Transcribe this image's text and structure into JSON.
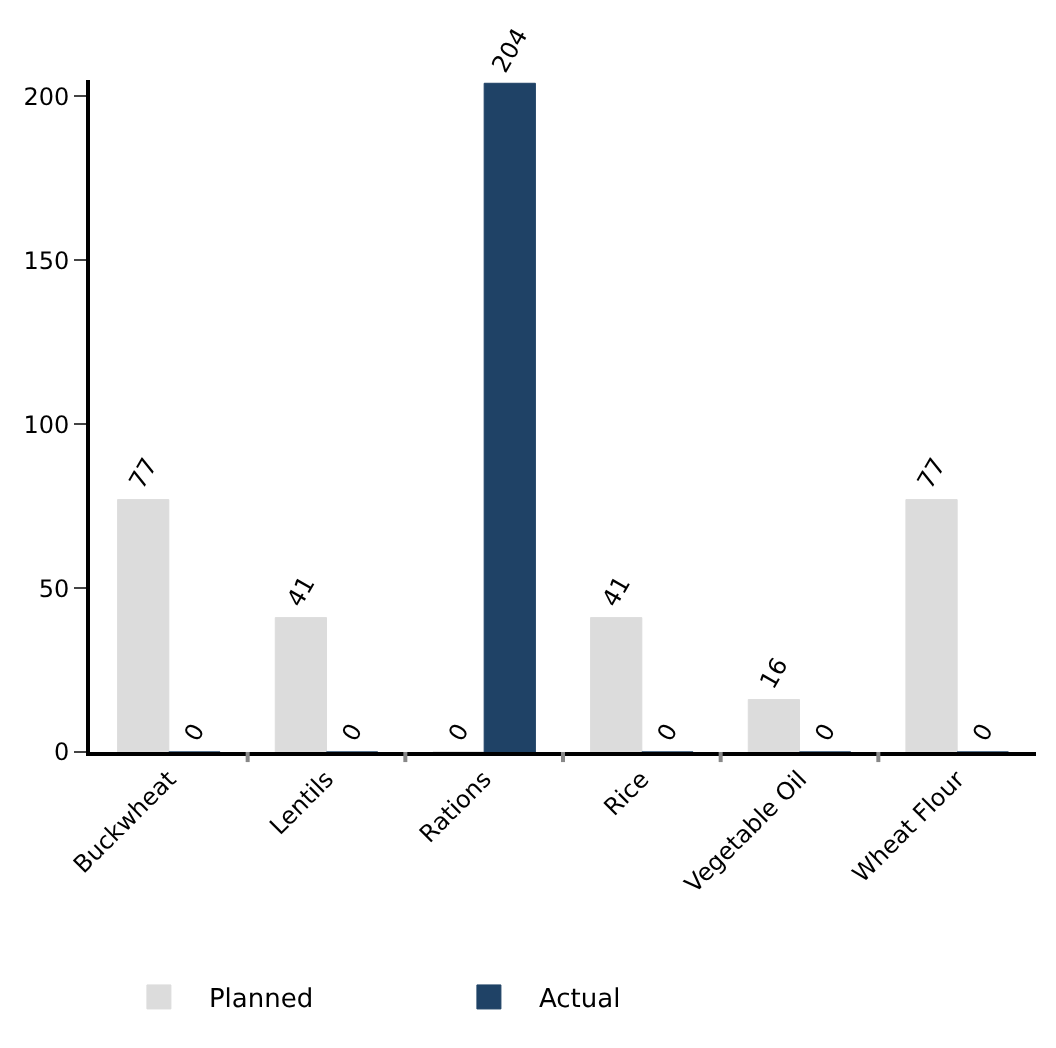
{
  "chart_data": {
    "type": "bar",
    "categories": [
      "Buckwheat",
      "Lentils",
      "Rations",
      "Rice",
      "Vegetable Oil",
      "Wheat Flour"
    ],
    "series": [
      {
        "name": "Planned",
        "color": "#dcdcdc",
        "values": [
          77,
          41,
          0,
          41,
          16,
          77
        ]
      },
      {
        "name": "Actual",
        "color": "#1f4266",
        "values": [
          0,
          0,
          204,
          0,
          0,
          0
        ]
      }
    ],
    "ylim": [
      0,
      205
    ],
    "yticks": [
      0,
      50,
      100,
      150,
      200
    ],
    "legend": "bottom",
    "data_labels": true
  }
}
